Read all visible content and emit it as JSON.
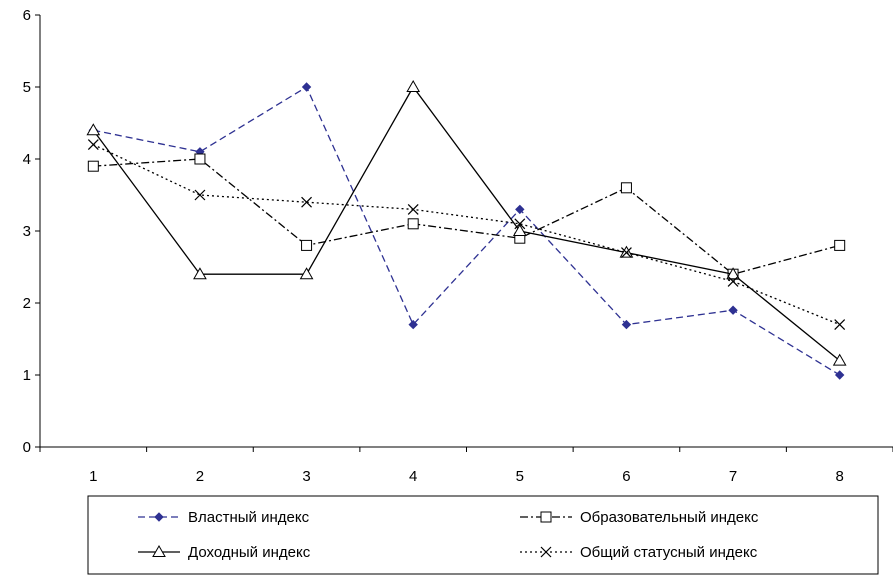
{
  "chart_data": {
    "type": "line",
    "title": "",
    "xlabel": "",
    "ylabel": "",
    "categories": [
      "1",
      "2",
      "3",
      "4",
      "5",
      "6",
      "7",
      "8"
    ],
    "ylim": [
      0,
      6
    ],
    "yticks": [
      "0",
      "1",
      "2",
      "3",
      "4",
      "5",
      "6"
    ],
    "grid": false,
    "legend_position": "bottom",
    "series": [
      {
        "name": "Властный индекс",
        "values": [
          4.4,
          4.1,
          5.0,
          1.7,
          3.3,
          1.7,
          1.9,
          1.0
        ],
        "color": "#2e3192",
        "line_style": "dashed",
        "marker": "diamond-filled"
      },
      {
        "name": "Образовательный индекс",
        "values": [
          3.9,
          4.0,
          2.8,
          3.1,
          2.9,
          3.6,
          2.4,
          2.8
        ],
        "color": "#000000",
        "line_style": "dash-dot",
        "marker": "square-open"
      },
      {
        "name": "Доходный индекс",
        "values": [
          4.4,
          2.4,
          2.4,
          5.0,
          3.0,
          2.7,
          2.4,
          1.2
        ],
        "color": "#000000",
        "line_style": "solid",
        "marker": "triangle-open"
      },
      {
        "name": "Общий статусный индекс",
        "values": [
          4.2,
          3.5,
          3.4,
          3.3,
          3.1,
          2.7,
          2.3,
          1.7
        ],
        "color": "#000000",
        "line_style": "dotted",
        "marker": "x"
      }
    ]
  }
}
